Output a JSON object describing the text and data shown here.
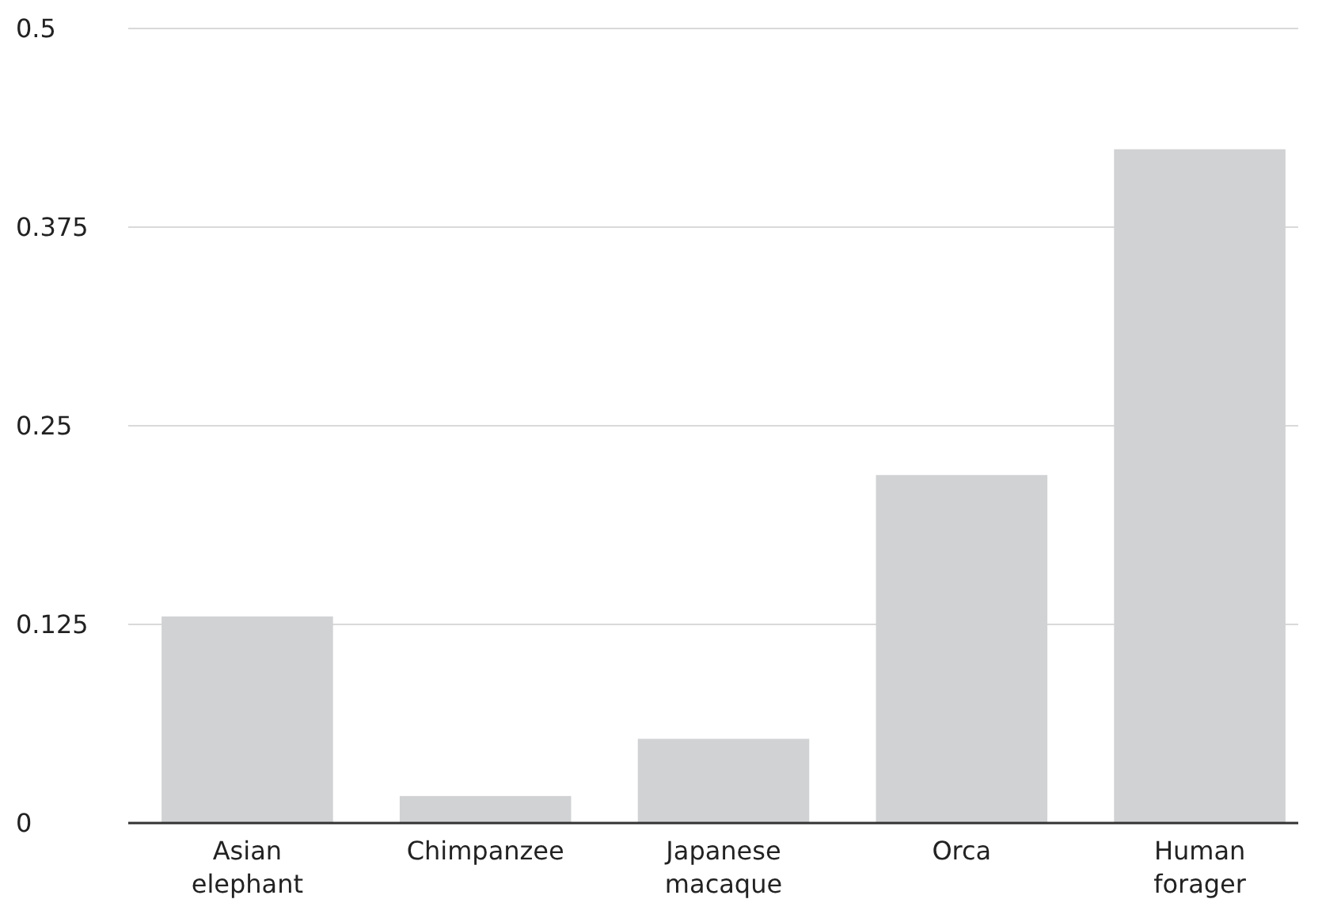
{
  "chart_data": {
    "type": "bar",
    "categories": [
      "Asian elephant",
      "Chimpanzee",
      "Japanese macaque",
      "Orca",
      "Human forager"
    ],
    "values": [
      0.13,
      0.017,
      0.053,
      0.219,
      0.424
    ],
    "color": "#d1d2d4",
    "ylim": [
      0,
      0.5
    ],
    "yticks": [
      0,
      0.125,
      0.25,
      0.375,
      0.5
    ],
    "grid": "y"
  }
}
